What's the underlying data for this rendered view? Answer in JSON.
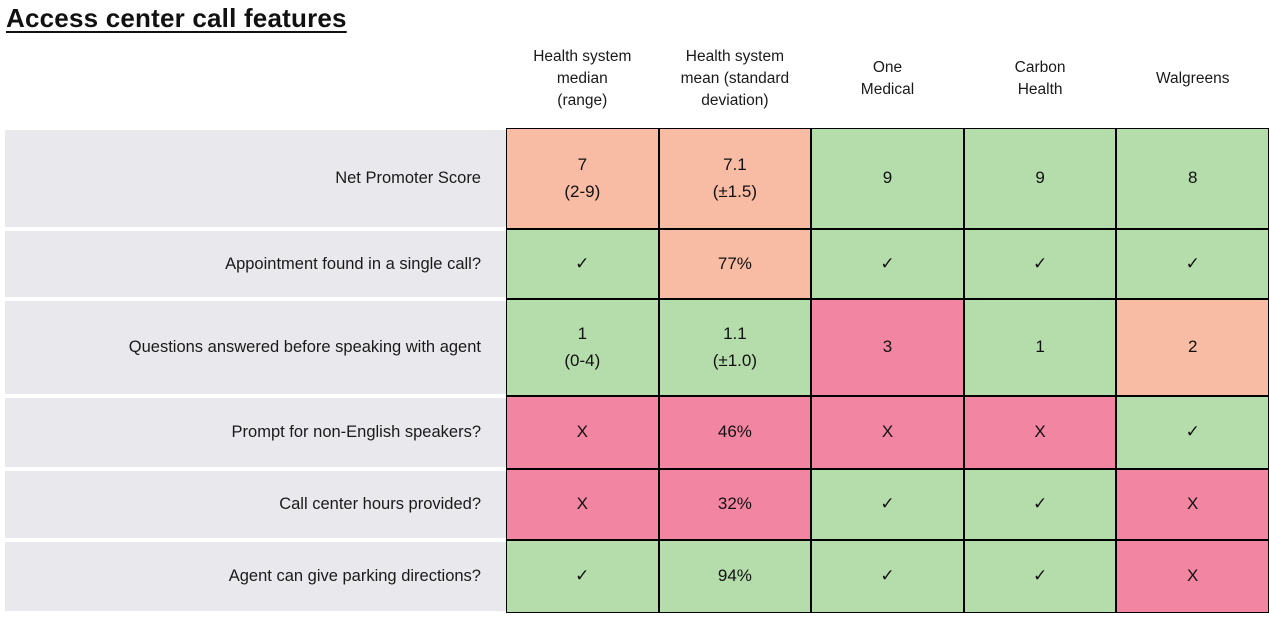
{
  "title": "Access center call features",
  "colors": {
    "good": "#b5dcab",
    "warn": "#f8bba3",
    "bad": "#f285a2",
    "label_bg": "#e9e9ed",
    "border": "#000000"
  },
  "chart_data": {
    "type": "table",
    "title": "Access center call features",
    "legend": {
      "good": "green",
      "warn": "orange",
      "bad": "pink"
    },
    "columns": [
      "Health system\nmedian\n(range)",
      "Health system\nmean (standard\ndeviation)",
      "One\nMedical",
      "Carbon\nHealth",
      "Walgreens"
    ],
    "rows": [
      {
        "label": "Net Promoter Score",
        "cells": [
          {
            "text": "7\n(2-9)",
            "status": "warn"
          },
          {
            "text": "7.1\n(±1.5)",
            "status": "warn"
          },
          {
            "text": "9",
            "status": "good"
          },
          {
            "text": "9",
            "status": "good"
          },
          {
            "text": "8",
            "status": "good"
          }
        ]
      },
      {
        "label": "Appointment found in a single call?",
        "cells": [
          {
            "text": "✓",
            "status": "good"
          },
          {
            "text": "77%",
            "status": "warn"
          },
          {
            "text": "✓",
            "status": "good"
          },
          {
            "text": "✓",
            "status": "good"
          },
          {
            "text": "✓",
            "status": "good"
          }
        ]
      },
      {
        "label": "Questions answered before speaking with agent",
        "cells": [
          {
            "text": "1\n(0-4)",
            "status": "good"
          },
          {
            "text": "1.1\n(±1.0)",
            "status": "good"
          },
          {
            "text": "3",
            "status": "bad"
          },
          {
            "text": "1",
            "status": "good"
          },
          {
            "text": "2",
            "status": "warn"
          }
        ]
      },
      {
        "label": "Prompt for non-English speakers?",
        "cells": [
          {
            "text": "X",
            "status": "bad"
          },
          {
            "text": "46%",
            "status": "bad"
          },
          {
            "text": "X",
            "status": "bad"
          },
          {
            "text": "X",
            "status": "bad"
          },
          {
            "text": "✓",
            "status": "good"
          }
        ]
      },
      {
        "label": "Call center hours provided?",
        "cells": [
          {
            "text": "X",
            "status": "bad"
          },
          {
            "text": "32%",
            "status": "bad"
          },
          {
            "text": "✓",
            "status": "good"
          },
          {
            "text": "✓",
            "status": "good"
          },
          {
            "text": "X",
            "status": "bad"
          }
        ]
      },
      {
        "label": "Agent can give parking directions?",
        "cells": [
          {
            "text": "✓",
            "status": "good"
          },
          {
            "text": "94%",
            "status": "good"
          },
          {
            "text": "✓",
            "status": "good"
          },
          {
            "text": "✓",
            "status": "good"
          },
          {
            "text": "X",
            "status": "bad"
          }
        ]
      }
    ]
  }
}
